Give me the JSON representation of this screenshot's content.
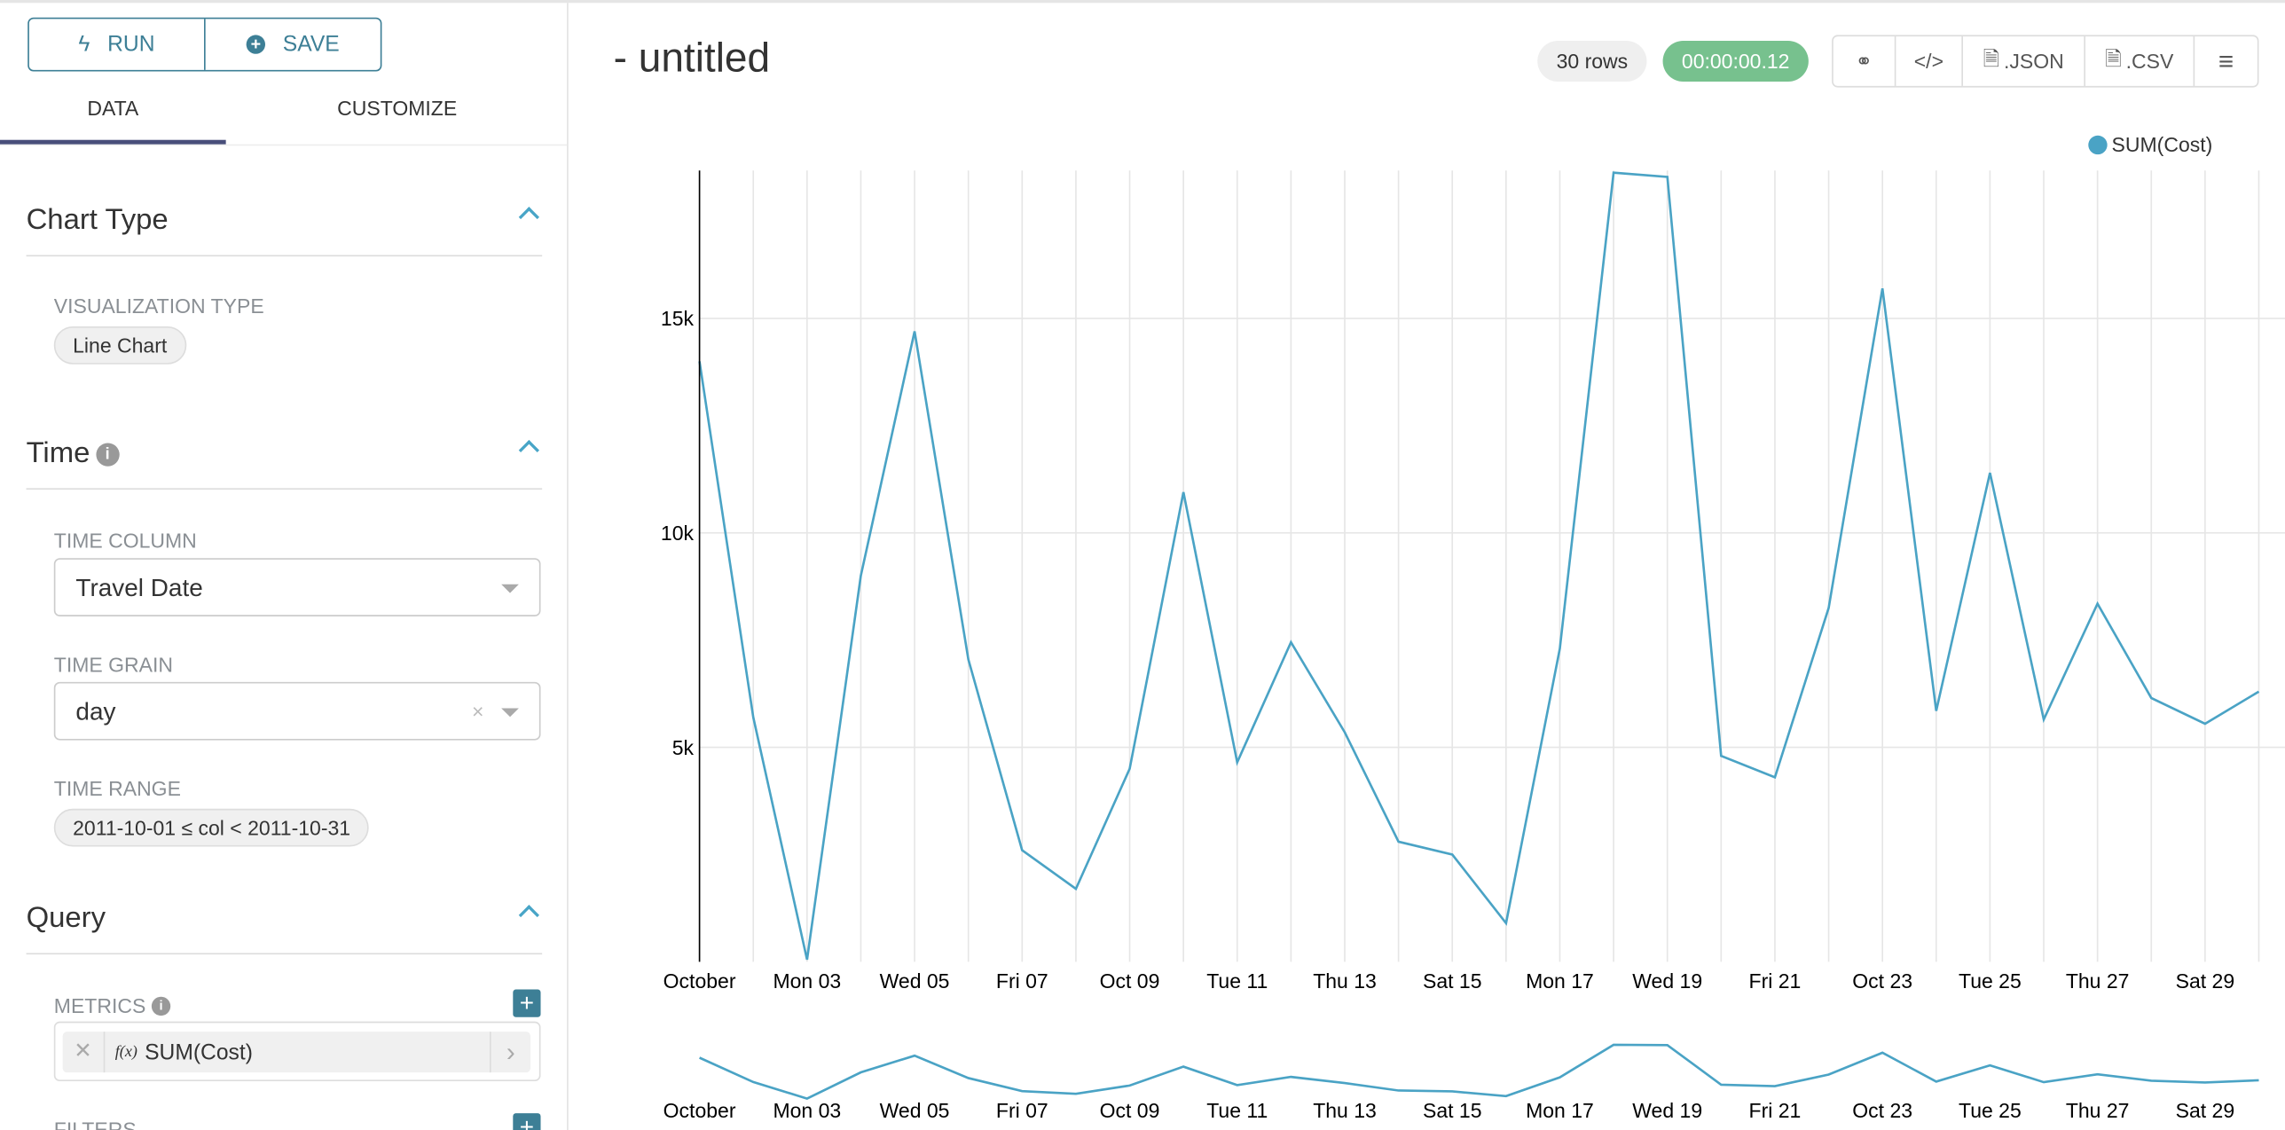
{
  "toolbar": {
    "run": "RUN",
    "save": "SAVE"
  },
  "tabs": [
    "DATA",
    "CUSTOMIZE"
  ],
  "sections": {
    "chart_type": {
      "title": "Chart Type",
      "viz_label": "VISUALIZATION TYPE",
      "viz_value": "Line Chart"
    },
    "time": {
      "title": "Time",
      "column_label": "TIME COLUMN",
      "column_value": "Travel Date",
      "grain_label": "TIME GRAIN",
      "grain_value": "day",
      "range_label": "TIME RANGE",
      "range_value": "2011-10-01 ≤ col < 2011-10-31"
    },
    "query": {
      "title": "Query",
      "metrics_label": "METRICS",
      "metric": "SUM(Cost)",
      "metric_fx": "f(x)",
      "filters_label": "FILTERS"
    }
  },
  "header": {
    "title": "- untitled",
    "rows": "30 rows",
    "duration": "00:00:00.12",
    "json": ".JSON",
    "csv": ".CSV"
  },
  "colors": {
    "accent": "#3d7f96",
    "line": "#4aa3c5",
    "success": "#77c18e"
  },
  "chart_data": {
    "type": "line",
    "legend": "SUM(Cost)",
    "legend_position": "top-right",
    "x": [
      "2011-10-01",
      "2011-10-02",
      "2011-10-03",
      "2011-10-04",
      "2011-10-05",
      "2011-10-06",
      "2011-10-07",
      "2011-10-08",
      "2011-10-09",
      "2011-10-10",
      "2011-10-11",
      "2011-10-12",
      "2011-10-13",
      "2011-10-14",
      "2011-10-15",
      "2011-10-16",
      "2011-10-17",
      "2011-10-18",
      "2011-10-19",
      "2011-10-20",
      "2011-10-21",
      "2011-10-22",
      "2011-10-23",
      "2011-10-24",
      "2011-10-25",
      "2011-10-26",
      "2011-10-27",
      "2011-10-28",
      "2011-10-29",
      "2011-10-30"
    ],
    "series": [
      {
        "name": "SUM(Cost)",
        "values": [
          14000,
          5700,
          50,
          9000,
          14700,
          7050,
          2600,
          1700,
          4500,
          10950,
          4650,
          7450,
          5350,
          2800,
          2500,
          900,
          7300,
          18400,
          18300,
          4800,
          4300,
          8250,
          15700,
          5850,
          11400,
          5650,
          8350,
          6150,
          5550,
          6300
        ]
      }
    ],
    "xtick_labels": [
      "October",
      "Mon 03",
      "Wed 05",
      "Fri 07",
      "Oct 09",
      "Tue 11",
      "Thu 13",
      "Sat 15",
      "Mon 17",
      "Wed 19",
      "Fri 21",
      "Oct 23",
      "Tue 25",
      "Thu 27",
      "Sat 29"
    ],
    "ytick_labels": [
      "5k",
      "10k",
      "15k"
    ],
    "yticks": [
      5000,
      10000,
      15000
    ],
    "ylim": [
      0,
      18450
    ],
    "grid": true
  }
}
